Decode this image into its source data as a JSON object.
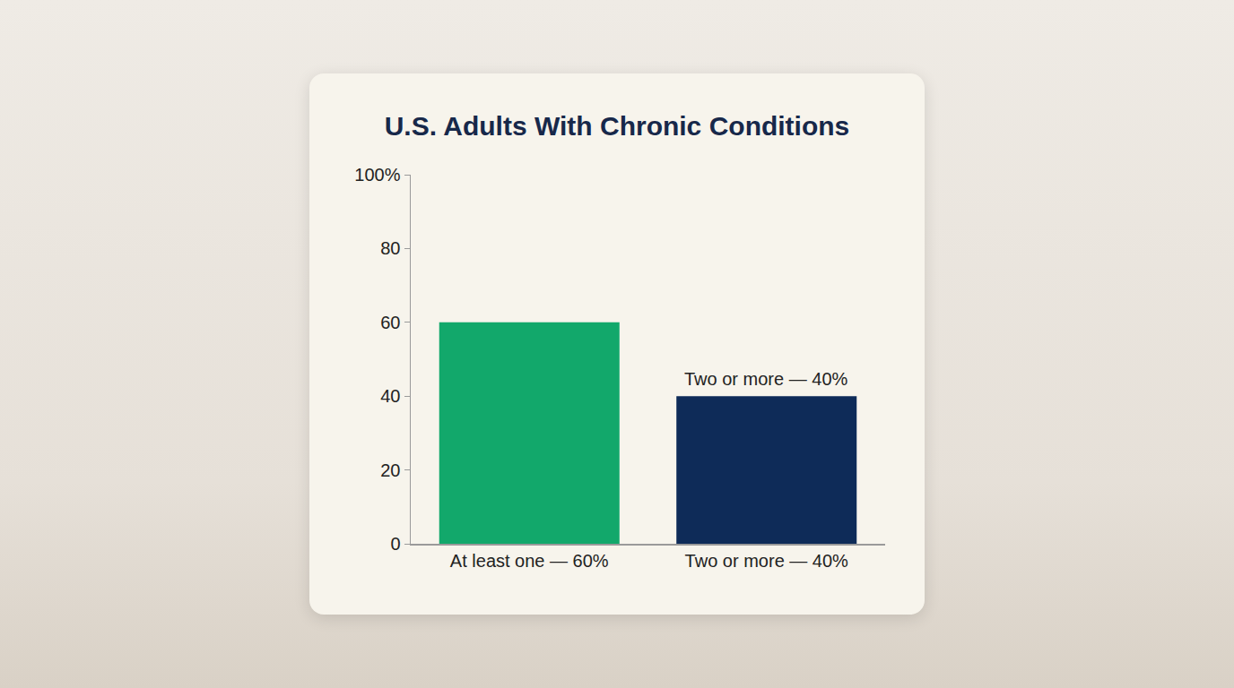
{
  "chart_data": {
    "type": "bar",
    "title": "U.S. Adults With Chronic Conditions",
    "categories": [
      "At least one — 60%",
      "Two or more — 40%"
    ],
    "values": [
      60,
      40
    ],
    "colors": [
      "#12a86b",
      "#0e2b58"
    ],
    "ylim": [
      0,
      100
    ],
    "yticks": [
      0,
      20,
      40,
      60,
      80,
      {
        "value": 100,
        "label": "100%"
      }
    ],
    "grid": false,
    "annotations": [
      {
        "text": "Two or more — 40%",
        "category": "Two or more — 40%",
        "value": 40
      }
    ]
  }
}
